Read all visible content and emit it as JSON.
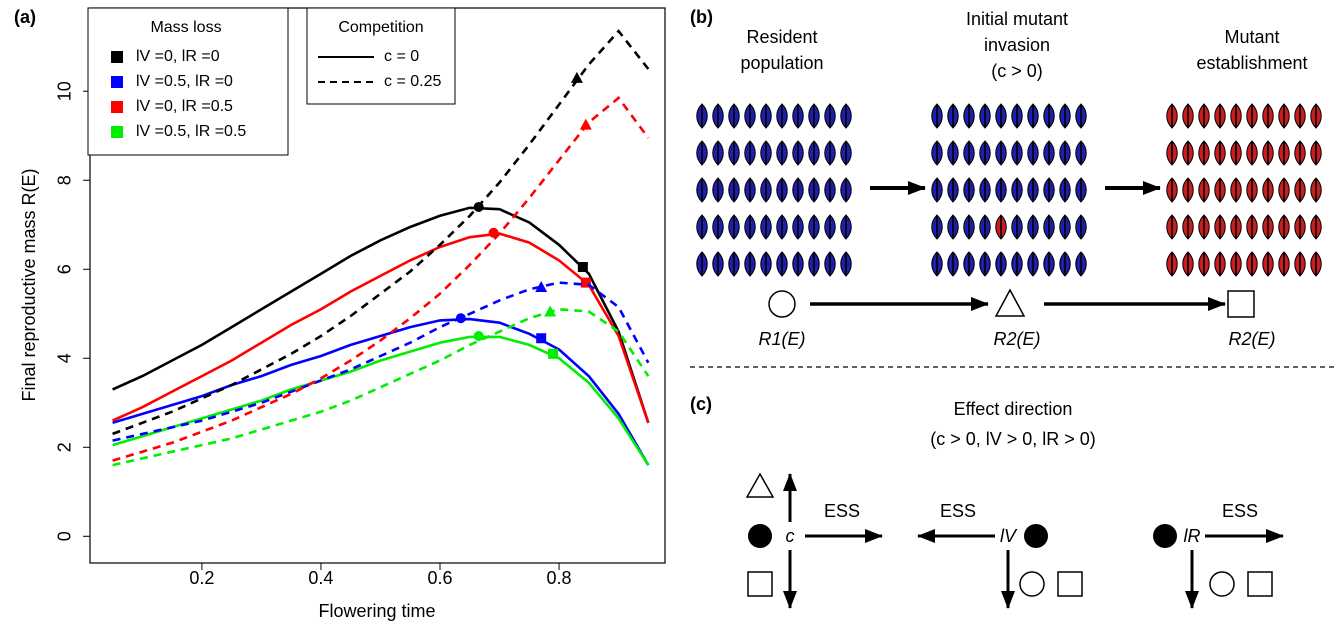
{
  "chart_data": {
    "type": "line",
    "panel_label": "(a)",
    "x_label": "Flowering time",
    "y_label": "Final reproductive mass R(E)",
    "x": [
      0.05,
      0.1,
      0.15,
      0.2,
      0.25,
      0.3,
      0.35,
      0.4,
      0.45,
      0.5,
      0.55,
      0.6,
      0.65,
      0.7,
      0.75,
      0.8,
      0.85,
      0.9,
      0.95
    ],
    "xlim": [
      0.012,
      0.978
    ],
    "xticks": [
      0.2,
      0.4,
      0.6,
      0.8
    ],
    "ylim": [
      -0.6,
      11.87
    ],
    "yticks": [
      0,
      2,
      4,
      6,
      8,
      10
    ],
    "series": [
      {
        "color": "#000000",
        "dashed": false,
        "values": [
          3.3,
          3.6,
          3.95,
          4.3,
          4.7,
          5.1,
          5.5,
          5.9,
          6.3,
          6.65,
          6.95,
          7.2,
          7.38,
          7.35,
          7.05,
          6.55,
          5.9,
          4.6,
          2.55
        ],
        "markers": [
          {
            "shape": "circle",
            "x": 0.665,
            "y": 7.4
          },
          {
            "shape": "square",
            "x": 0.84,
            "y": 6.05
          }
        ]
      },
      {
        "color": "#0000ff",
        "dashed": false,
        "values": [
          2.55,
          2.75,
          2.95,
          3.15,
          3.4,
          3.6,
          3.85,
          4.05,
          4.3,
          4.5,
          4.7,
          4.85,
          4.88,
          4.8,
          4.55,
          4.2,
          3.6,
          2.75,
          1.6
        ],
        "markers": [
          {
            "shape": "circle",
            "x": 0.635,
            "y": 4.9
          },
          {
            "shape": "square",
            "x": 0.77,
            "y": 4.45
          }
        ]
      },
      {
        "color": "#ff0000",
        "dashed": false,
        "values": [
          2.6,
          2.9,
          3.25,
          3.6,
          3.95,
          4.35,
          4.75,
          5.1,
          5.5,
          5.85,
          6.2,
          6.5,
          6.72,
          6.8,
          6.6,
          6.2,
          5.65,
          4.5,
          2.55
        ],
        "markers": [
          {
            "shape": "circle",
            "x": 0.69,
            "y": 6.82
          },
          {
            "shape": "square",
            "x": 0.845,
            "y": 5.7
          }
        ]
      },
      {
        "color": "#00ee00",
        "dashed": false,
        "values": [
          2.05,
          2.25,
          2.45,
          2.65,
          2.85,
          3.05,
          3.3,
          3.5,
          3.7,
          3.95,
          4.15,
          4.35,
          4.48,
          4.48,
          4.3,
          4.0,
          3.45,
          2.65,
          1.6
        ],
        "markers": [
          {
            "shape": "circle",
            "x": 0.665,
            "y": 4.5
          },
          {
            "shape": "square",
            "x": 0.79,
            "y": 4.1
          }
        ]
      },
      {
        "color": "#000000",
        "dashed": true,
        "values": [
          2.3,
          2.55,
          2.8,
          3.1,
          3.4,
          3.75,
          4.1,
          4.5,
          4.95,
          5.45,
          5.95,
          6.55,
          7.2,
          7.95,
          8.8,
          9.7,
          10.6,
          11.35,
          10.5
        ],
        "markers": [
          {
            "shape": "triangle",
            "x": 0.83,
            "y": 10.3
          }
        ]
      },
      {
        "color": "#0000ff",
        "dashed": true,
        "values": [
          2.15,
          2.3,
          2.45,
          2.6,
          2.8,
          3.0,
          3.25,
          3.5,
          3.75,
          4.05,
          4.35,
          4.7,
          5.0,
          5.3,
          5.55,
          5.7,
          5.65,
          5.15,
          3.9
        ],
        "markers": [
          {
            "shape": "triangle",
            "x": 0.77,
            "y": 5.6
          }
        ]
      },
      {
        "color": "#ff0000",
        "dashed": true,
        "values": [
          1.7,
          1.9,
          2.1,
          2.35,
          2.6,
          2.9,
          3.2,
          3.55,
          3.95,
          4.4,
          4.9,
          5.45,
          6.1,
          6.8,
          7.6,
          8.45,
          9.3,
          9.85,
          8.95
        ],
        "markers": [
          {
            "shape": "triangle",
            "x": 0.845,
            "y": 9.25
          }
        ]
      },
      {
        "color": "#00ee00",
        "dashed": true,
        "values": [
          1.6,
          1.75,
          1.9,
          2.05,
          2.2,
          2.4,
          2.6,
          2.8,
          3.05,
          3.35,
          3.65,
          3.95,
          4.3,
          4.6,
          4.9,
          5.1,
          5.05,
          4.6,
          3.6
        ],
        "markers": [
          {
            "shape": "triangle",
            "x": 0.785,
            "y": 5.05
          }
        ]
      }
    ],
    "legends": {
      "mass_loss": {
        "title": "Mass loss",
        "entries": [
          {
            "label": "lV =0,  lR =0",
            "color": "#000000"
          },
          {
            "label": "lV =0.5,  lR =0",
            "color": "#0000ff"
          },
          {
            "label": "lV =0,  lR =0.5",
            "color": "#ff0000"
          },
          {
            "label": "lV =0.5,  lR =0.5",
            "color": "#00ee00"
          }
        ]
      },
      "competition": {
        "title": "Competition",
        "entries": [
          {
            "label": "c = 0",
            "dashed": false
          },
          {
            "label": "c = 0.25",
            "dashed": true
          }
        ]
      }
    }
  },
  "panel_b": {
    "label": "(b)",
    "stages": [
      {
        "title_lines": [
          "Resident",
          "population"
        ],
        "measure": "R1(E)"
      },
      {
        "title_lines": [
          "Initial mutant",
          "invasion",
          "(c > 0)"
        ],
        "measure": "R2(E)"
      },
      {
        "title_lines": [
          "Mutant",
          "establishment"
        ],
        "measure": "R2(E)"
      }
    ]
  },
  "panel_c": {
    "label": "(c)",
    "title": "Effect direction",
    "subtitle": "(c > 0, lV > 0, lR > 0)",
    "effects": [
      {
        "symbol": "c",
        "arrow_label": "ESS"
      },
      {
        "symbol": "lV",
        "arrow_label": "ESS"
      },
      {
        "symbol": "lR",
        "arrow_label": "ESS"
      }
    ]
  }
}
